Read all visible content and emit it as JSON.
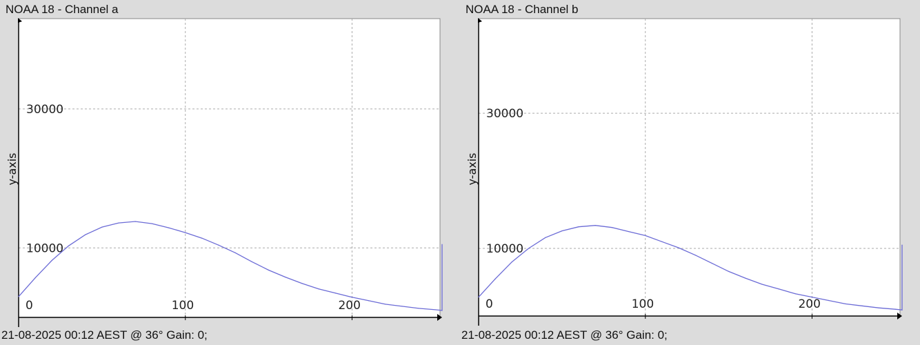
{
  "chart_data": [
    {
      "type": "line",
      "title": "NOAA 18 - Channel a",
      "xlabel": "",
      "ylabel": "y-axis",
      "xlim": [
        0,
        254
      ],
      "ylim": [
        0,
        43000
      ],
      "xticks": [
        "0",
        "100",
        "200"
      ],
      "yticks": [
        "10000",
        "30000"
      ],
      "grid": true,
      "line_color": "#6b6bd6",
      "x": [
        0,
        10,
        20,
        30,
        40,
        50,
        60,
        70,
        80,
        90,
        100,
        110,
        120,
        130,
        140,
        150,
        160,
        170,
        180,
        190,
        200,
        210,
        220,
        230,
        240,
        250,
        254,
        254
      ],
      "y": [
        3000,
        5700,
        8200,
        10300,
        11900,
        13000,
        13600,
        13800,
        13500,
        12900,
        12200,
        11400,
        10400,
        9300,
        8000,
        6800,
        5800,
        4900,
        4100,
        3500,
        2900,
        2400,
        1900,
        1600,
        1300,
        1100,
        1000,
        10500
      ],
      "footer": "21-08-2025 00:12 AEST @ 36° Gain: 0;"
    },
    {
      "type": "line",
      "title": "NOAA 18 - Channel b",
      "xlabel": "",
      "ylabel": "y-axis",
      "xlim": [
        0,
        254
      ],
      "ylim": [
        0,
        44000
      ],
      "xticks": [
        "0",
        "100",
        "200"
      ],
      "yticks": [
        "10000",
        "30000"
      ],
      "grid": true,
      "line_color": "#6b6bd6",
      "x": [
        0,
        10,
        20,
        30,
        40,
        50,
        60,
        70,
        80,
        90,
        100,
        110,
        120,
        130,
        140,
        150,
        160,
        170,
        180,
        190,
        200,
        210,
        220,
        230,
        240,
        250,
        254,
        254
      ],
      "y": [
        2800,
        5500,
        8000,
        10000,
        11600,
        12600,
        13200,
        13400,
        13100,
        12500,
        11900,
        11000,
        10100,
        9000,
        7800,
        6600,
        5600,
        4700,
        4000,
        3300,
        2800,
        2300,
        1800,
        1500,
        1200,
        1000,
        900,
        10500
      ],
      "footer": "21-08-2025 00:12 AEST @ 36° Gain: 0;"
    }
  ]
}
